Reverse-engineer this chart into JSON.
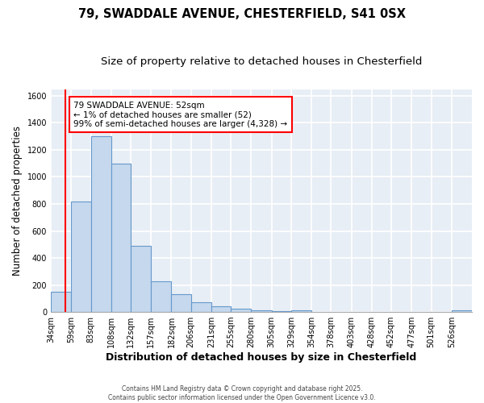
{
  "title": "79, SWADDALE AVENUE, CHESTERFIELD, S41 0SX",
  "subtitle": "Size of property relative to detached houses in Chesterfield",
  "xlabel": "Distribution of detached houses by size in Chesterfield",
  "ylabel": "Number of detached properties",
  "bin_edges": [
    34,
    59,
    83,
    108,
    132,
    157,
    182,
    206,
    231,
    255,
    280,
    305,
    329,
    354,
    378,
    403,
    428,
    452,
    477,
    501,
    526,
    551
  ],
  "bar_heights": [
    150,
    820,
    1300,
    1100,
    490,
    230,
    130,
    70,
    45,
    22,
    12,
    5,
    15,
    3,
    3,
    3,
    3,
    3,
    3,
    3,
    12
  ],
  "bar_facecolor": "#c5d8ed",
  "bar_edgecolor": "#6699cc",
  "background_color": "#e8eef5",
  "grid_color": "#ffffff",
  "red_line_x": 52,
  "annotation_text": "79 SWADDALE AVENUE: 52sqm\n← 1% of detached houses are smaller (52)\n99% of semi-detached houses are larger (4,328) →",
  "footer_line1": "Contains HM Land Registry data © Crown copyright and database right 2025.",
  "footer_line2": "Contains public sector information licensed under the Open Government Licence v3.0.",
  "ylim": [
    0,
    1650
  ],
  "yticks": [
    0,
    200,
    400,
    600,
    800,
    1000,
    1200,
    1400,
    1600
  ],
  "title_fontsize": 10.5,
  "subtitle_fontsize": 9.5,
  "ylabel_fontsize": 8.5,
  "xlabel_fontsize": 9,
  "tick_fontsize": 7,
  "tick_labels": [
    "34sqm",
    "59sqm",
    "83sqm",
    "108sqm",
    "132sqm",
    "157sqm",
    "182sqm",
    "206sqm",
    "231sqm",
    "255sqm",
    "280sqm",
    "305sqm",
    "329sqm",
    "354sqm",
    "378sqm",
    "403sqm",
    "428sqm",
    "452sqm",
    "477sqm",
    "501sqm",
    "526sqm"
  ],
  "fig_facecolor": "#ffffff"
}
